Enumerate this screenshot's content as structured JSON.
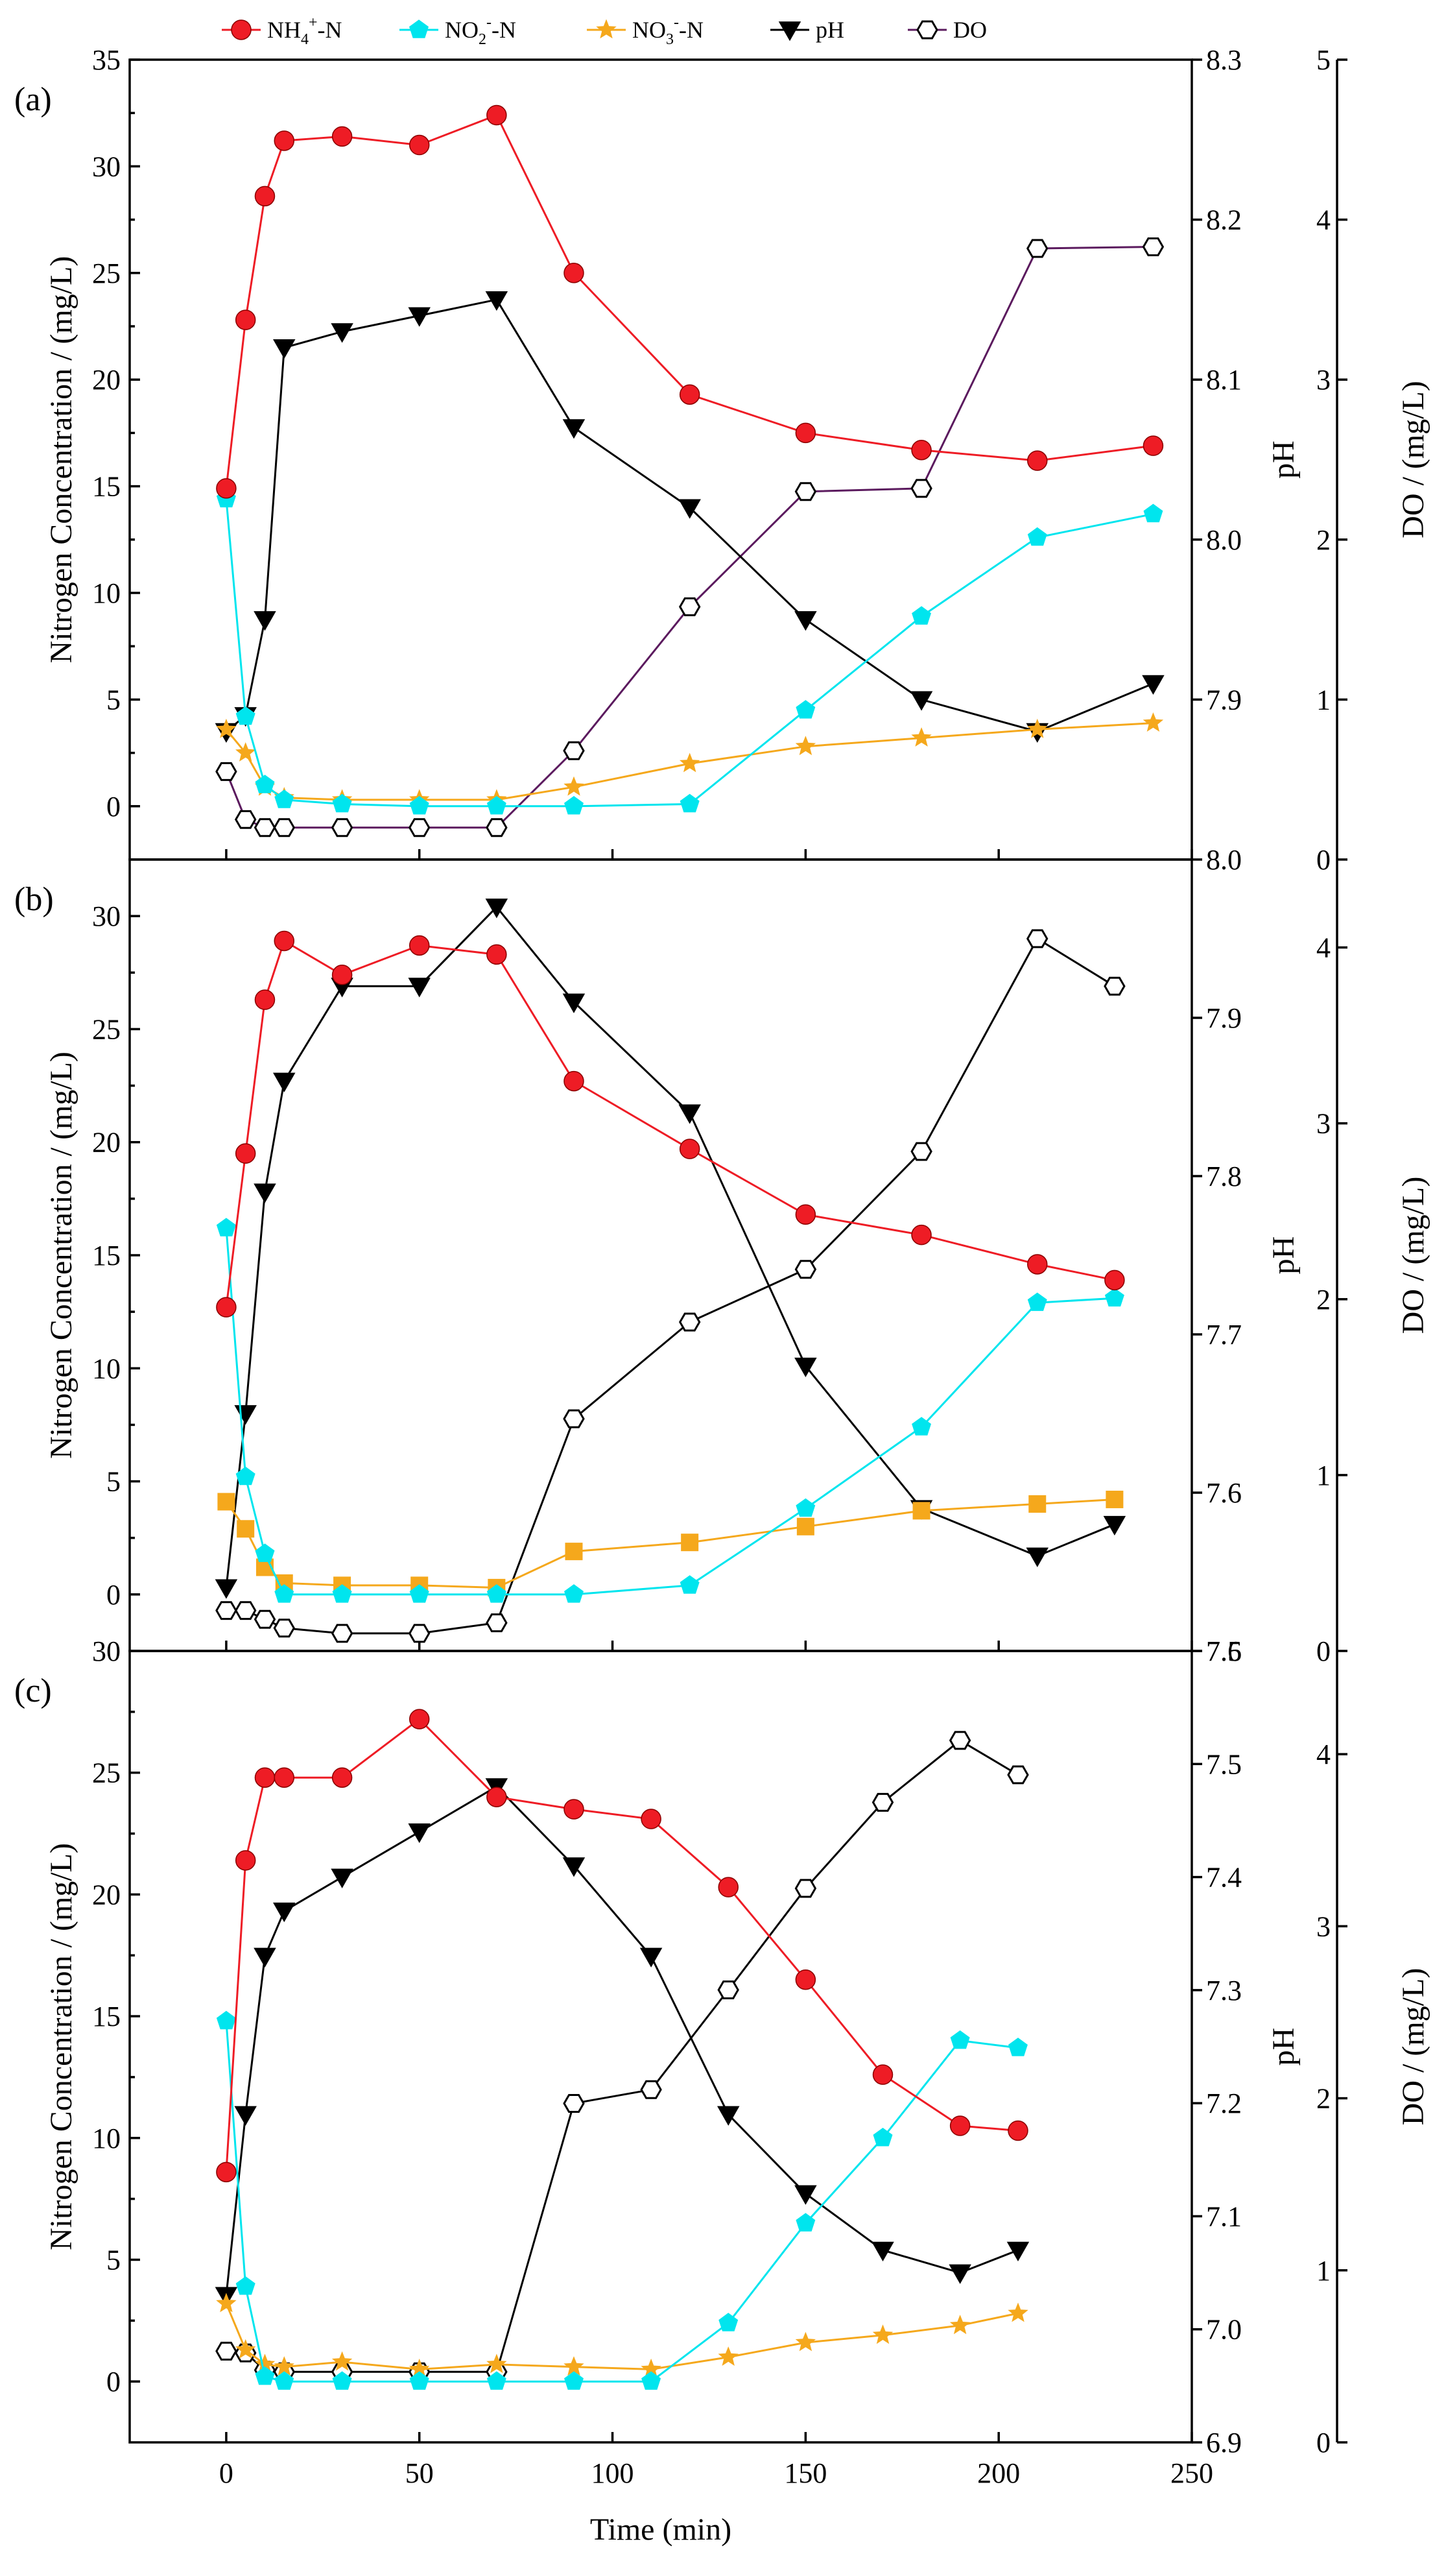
{
  "legend": {
    "items": [
      {
        "key": "nh4",
        "base": "NH",
        "sub": "4",
        "sup": "+",
        "tail": "-N",
        "color": "#ee1c25",
        "marker": "circle"
      },
      {
        "key": "no2",
        "base": "NO",
        "sub": "2",
        "sup": "-",
        "tail": "-N",
        "color": "#00e5ee",
        "marker": "pentagon"
      },
      {
        "key": "no3",
        "base": "NO",
        "sub": "3",
        "sup": "-",
        "tail": "-N",
        "color": "#f5a81c",
        "marker": "star"
      },
      {
        "key": "ph",
        "base": "pH",
        "sub": "",
        "sup": "",
        "tail": "",
        "color": "#000000",
        "marker": "triangle-down"
      },
      {
        "key": "do",
        "base": "DO",
        "sub": "",
        "sup": "",
        "tail": "",
        "color": "#5b1a5e",
        "marker": "hexagon"
      }
    ]
  },
  "x_axis": {
    "label": "Time (min)",
    "range": [
      -25,
      250
    ],
    "ticks": [
      0,
      50,
      100,
      150,
      200,
      250
    ],
    "tick_labels": [
      "0",
      "50",
      "100",
      "150",
      "200",
      "250"
    ]
  },
  "axis_titles": {
    "left": "Nitrogen Concentration / (mg/L)",
    "right1": "pH",
    "right2": "DO / (mg/L)"
  },
  "chart_data": [
    {
      "type": "line",
      "panel": "(a)",
      "title": "",
      "xlabel": "Time (min)",
      "ylabel": "Nitrogen Concentration / (mg/L)",
      "ylim": [
        -2.5,
        35
      ],
      "yticks": [
        0,
        5,
        10,
        15,
        20,
        25,
        30,
        35
      ],
      "ph_axis": {
        "label": "pH",
        "range": [
          7.8,
          8.3
        ],
        "ticks": [
          7.9,
          8.0,
          8.1,
          8.2,
          8.3
        ],
        "tick_labels": [
          "7.9",
          "8.0",
          "8.1",
          "8.2",
          "8.3"
        ]
      },
      "do_axis": {
        "label": "DO / (mg/L)",
        "range": [
          0,
          5
        ],
        "ticks": [
          0,
          1,
          2,
          3,
          4,
          5
        ],
        "tick_labels": [
          "0",
          "1",
          "2",
          "3",
          "4",
          "5"
        ]
      },
      "series": [
        {
          "key": "nh4",
          "name": "NH4+-N",
          "axis": "left",
          "x": [
            0,
            5,
            10,
            15,
            30,
            50,
            70,
            90,
            120,
            150,
            180,
            210,
            240
          ],
          "values": [
            14.9,
            22.8,
            28.6,
            31.2,
            31.4,
            31.0,
            32.4,
            25.0,
            19.3,
            17.5,
            16.7,
            16.2,
            16.9
          ]
        },
        {
          "key": "no2",
          "name": "NO2--N",
          "axis": "left",
          "x": [
            0,
            5,
            10,
            15,
            30,
            50,
            70,
            90,
            120,
            150,
            180,
            210,
            240
          ],
          "values": [
            14.4,
            4.2,
            1.0,
            0.3,
            0.1,
            0.0,
            0.0,
            0.0,
            0.1,
            4.5,
            8.9,
            12.6,
            13.7
          ]
        },
        {
          "key": "no3",
          "name": "NO3--N",
          "axis": "left",
          "x": [
            0,
            5,
            10,
            15,
            30,
            50,
            70,
            90,
            120,
            150,
            180,
            210,
            240
          ],
          "values": [
            3.6,
            2.5,
            0.9,
            0.4,
            0.3,
            0.3,
            0.3,
            0.9,
            2.0,
            2.8,
            3.2,
            3.6,
            3.9
          ]
        },
        {
          "key": "ph",
          "name": "pH",
          "axis": "ph",
          "x": [
            0,
            5,
            10,
            15,
            30,
            50,
            70,
            90,
            120,
            150,
            180,
            210,
            240
          ],
          "values": [
            7.88,
            7.89,
            7.95,
            8.12,
            8.13,
            8.14,
            8.15,
            8.07,
            8.02,
            7.95,
            7.9,
            7.88,
            7.91
          ]
        },
        {
          "key": "do",
          "name": "DO",
          "axis": "do",
          "x": [
            0,
            5,
            10,
            15,
            30,
            50,
            70,
            90,
            120,
            150,
            180,
            210,
            240
          ],
          "values": [
            0.55,
            0.25,
            0.2,
            0.2,
            0.2,
            0.2,
            0.2,
            0.68,
            1.58,
            2.3,
            2.32,
            3.82,
            3.83
          ]
        }
      ]
    },
    {
      "type": "line",
      "panel": "(b)",
      "title": "",
      "xlabel": "Time (min)",
      "ylabel": "Nitrogen Concentration / (mg/L)",
      "ylim": [
        -2.5,
        32.5
      ],
      "yticks": [
        0,
        5,
        10,
        15,
        20,
        25,
        30
      ],
      "ph_axis": {
        "label": "pH",
        "range": [
          7.5,
          8.0
        ],
        "ticks": [
          7.5,
          7.6,
          7.7,
          7.8,
          7.9,
          8.0
        ],
        "tick_labels": [
          "7.5",
          "7.6",
          "7.7",
          "7.8",
          "7.9",
          "8.0"
        ]
      },
      "do_axis": {
        "label": "DO / (mg/L)",
        "range": [
          0,
          4.5
        ],
        "ticks": [
          0,
          1,
          2,
          3,
          4
        ],
        "tick_labels": [
          "0",
          "1",
          "2",
          "3",
          "4"
        ]
      },
      "series": [
        {
          "key": "nh4",
          "name": "NH4+-N",
          "axis": "left",
          "x": [
            0,
            5,
            10,
            15,
            30,
            50,
            70,
            90,
            120,
            150,
            180,
            210,
            230
          ],
          "values": [
            12.7,
            19.5,
            26.3,
            28.9,
            27.4,
            28.7,
            28.3,
            22.7,
            19.7,
            16.8,
            15.9,
            14.6,
            13.9
          ]
        },
        {
          "key": "no2",
          "name": "NO2--N",
          "axis": "left",
          "x": [
            0,
            5,
            10,
            15,
            30,
            50,
            70,
            90,
            120,
            150,
            180,
            210,
            230
          ],
          "values": [
            16.2,
            5.2,
            1.8,
            0.0,
            0.0,
            0.0,
            0.0,
            0.0,
            0.4,
            3.8,
            7.4,
            12.9,
            13.1
          ]
        },
        {
          "key": "no3",
          "name": "NO3--N",
          "axis": "left",
          "marker_override": "square",
          "x": [
            0,
            5,
            10,
            15,
            30,
            50,
            70,
            90,
            120,
            150,
            180,
            210,
            230
          ],
          "values": [
            4.1,
            2.9,
            1.2,
            0.5,
            0.4,
            0.4,
            0.3,
            1.9,
            2.3,
            3.0,
            3.7,
            4.0,
            4.2
          ]
        },
        {
          "key": "ph",
          "name": "pH",
          "axis": "ph",
          "x": [
            0,
            5,
            10,
            15,
            30,
            50,
            70,
            90,
            120,
            150,
            180,
            210,
            230
          ],
          "values": [
            7.54,
            7.65,
            7.79,
            7.86,
            7.92,
            7.92,
            7.97,
            7.91,
            7.84,
            7.68,
            7.59,
            7.56,
            7.58
          ]
        },
        {
          "key": "do",
          "name": "DO",
          "axis": "do",
          "x": [
            0,
            5,
            10,
            15,
            30,
            50,
            70,
            90,
            120,
            150,
            180,
            210,
            230
          ],
          "values": [
            0.23,
            0.23,
            0.18,
            0.13,
            0.1,
            0.1,
            0.16,
            1.32,
            1.87,
            2.17,
            2.84,
            4.05,
            3.78
          ]
        }
      ]
    },
    {
      "type": "line",
      "panel": "(c)",
      "title": "",
      "xlabel": "Time (min)",
      "ylabel": "Nitrogen Concentration / (mg/L)",
      "ylim": [
        -2.5,
        30
      ],
      "yticks": [
        0,
        5,
        10,
        15,
        20,
        25,
        30
      ],
      "ph_axis": {
        "label": "pH",
        "range": [
          6.9,
          7.6
        ],
        "ticks": [
          6.9,
          7.0,
          7.1,
          7.2,
          7.3,
          7.4,
          7.5,
          7.6
        ],
        "tick_labels": [
          "6.9",
          "7.0",
          "7.1",
          "7.2",
          "7.3",
          "7.4",
          "7.5",
          "7.6"
        ]
      },
      "do_axis": {
        "label": "DO / (mg/L)",
        "range": [
          0,
          4.6
        ],
        "ticks": [
          0,
          1,
          2,
          3,
          4
        ],
        "tick_labels": [
          "0",
          "1",
          "2",
          "3",
          "4"
        ]
      },
      "series": [
        {
          "key": "nh4",
          "name": "NH4+-N",
          "axis": "left",
          "x": [
            0,
            5,
            10,
            15,
            30,
            50,
            70,
            90,
            110,
            130,
            150,
            170,
            190,
            205
          ],
          "values": [
            8.6,
            21.4,
            24.8,
            24.8,
            24.8,
            27.2,
            24.0,
            23.5,
            23.1,
            20.3,
            16.5,
            12.6,
            10.5,
            10.3
          ]
        },
        {
          "key": "no2",
          "name": "NO2--N",
          "axis": "left",
          "x": [
            0,
            5,
            10,
            15,
            30,
            50,
            70,
            90,
            110,
            130,
            150,
            170,
            190,
            205
          ],
          "values": [
            14.8,
            3.9,
            0.2,
            0.0,
            0.0,
            0.0,
            0.0,
            0.0,
            0.0,
            2.4,
            6.5,
            10.0,
            14.0,
            13.7
          ]
        },
        {
          "key": "no3",
          "name": "NO3--N",
          "axis": "left",
          "x": [
            0,
            5,
            10,
            15,
            30,
            50,
            70,
            90,
            110,
            130,
            150,
            170,
            190,
            205
          ],
          "values": [
            3.2,
            1.3,
            0.7,
            0.6,
            0.8,
            0.5,
            0.7,
            0.6,
            0.5,
            1.0,
            1.6,
            1.9,
            2.3,
            2.8
          ]
        },
        {
          "key": "ph",
          "name": "pH",
          "axis": "ph",
          "x": [
            0,
            5,
            10,
            15,
            30,
            50,
            70,
            90,
            110,
            130,
            150,
            170,
            190,
            205
          ],
          "values": [
            7.03,
            7.19,
            7.33,
            7.37,
            7.4,
            7.44,
            7.48,
            7.41,
            7.33,
            7.19,
            7.12,
            7.07,
            7.05,
            7.07
          ]
        },
        {
          "key": "do",
          "name": "DO",
          "axis": "do",
          "x": [
            0,
            5,
            10,
            15,
            30,
            50,
            70,
            90,
            110,
            130,
            150,
            170,
            190,
            205
          ],
          "values": [
            0.53,
            0.52,
            0.42,
            0.41,
            0.41,
            0.41,
            0.41,
            1.97,
            2.05,
            2.63,
            3.22,
            3.72,
            4.08,
            3.88
          ]
        }
      ]
    }
  ]
}
